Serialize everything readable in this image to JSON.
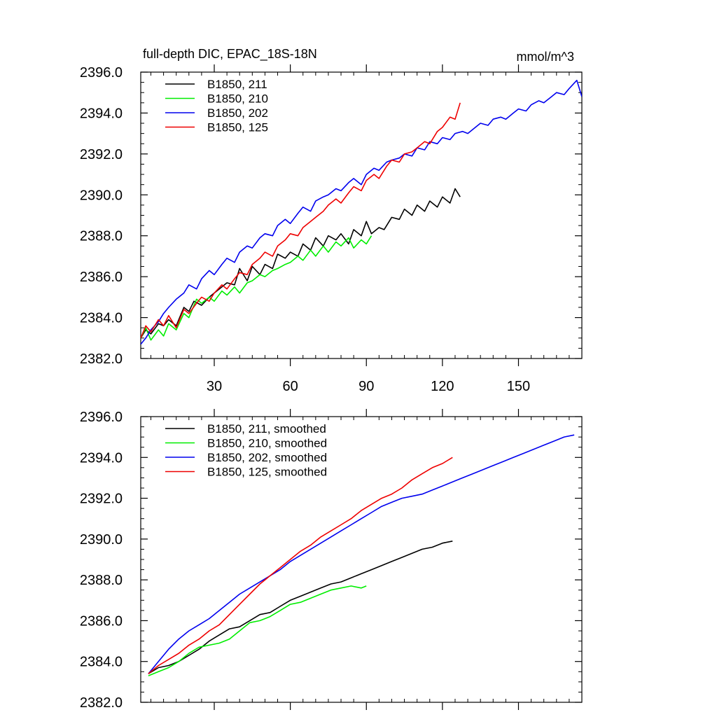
{
  "chart_data": [
    {
      "type": "line",
      "title": "full-depth DIC, EPAC_18S-18N",
      "units": "mmol/m^3",
      "xlim": [
        1,
        175
      ],
      "ylim": [
        2382.0,
        2396.0
      ],
      "xticks": [
        30,
        60,
        90,
        120,
        150
      ],
      "show_xtick_labels": true,
      "yticks": [
        2382.0,
        2384.0,
        2386.0,
        2388.0,
        2390.0,
        2392.0,
        2394.0,
        2396.0
      ],
      "ytick_labels": [
        "2382.0",
        "2384.0",
        "2386.0",
        "2388.0",
        "2390.0",
        "2392.0",
        "2394.0",
        "2396.0"
      ],
      "grid": false,
      "legend_position": "top-left",
      "series": [
        {
          "name": "B1850, 211",
          "color": "#000000",
          "x": [
            1,
            3,
            5,
            8,
            10,
            12,
            15,
            18,
            20,
            22,
            25,
            28,
            30,
            33,
            35,
            38,
            40,
            43,
            45,
            48,
            50,
            53,
            55,
            58,
            60,
            63,
            65,
            68,
            70,
            73,
            75,
            78,
            80,
            83,
            85,
            88,
            90,
            92,
            95,
            97,
            100,
            103,
            105,
            108,
            110,
            113,
            115,
            118,
            120,
            123,
            125,
            127
          ],
          "y": [
            2383.0,
            2383.4,
            2383.2,
            2383.7,
            2383.6,
            2383.9,
            2383.6,
            2384.5,
            2384.3,
            2384.8,
            2384.6,
            2385.0,
            2385.2,
            2385.5,
            2385.7,
            2385.6,
            2386.4,
            2385.8,
            2386.5,
            2386.1,
            2386.6,
            2386.4,
            2387.1,
            2386.9,
            2387.2,
            2387.0,
            2387.6,
            2387.3,
            2387.9,
            2387.5,
            2388.0,
            2387.8,
            2388.1,
            2387.6,
            2388.3,
            2388.0,
            2388.7,
            2388.1,
            2388.4,
            2388.3,
            2388.9,
            2388.8,
            2389.3,
            2389.0,
            2389.5,
            2389.2,
            2389.7,
            2389.4,
            2389.9,
            2389.6,
            2390.3,
            2389.9
          ]
        },
        {
          "name": "B1850, 210",
          "color": "#00ee00",
          "x": [
            1,
            3,
            5,
            8,
            10,
            12,
            15,
            18,
            20,
            23,
            25,
            28,
            30,
            33,
            35,
            38,
            40,
            43,
            45,
            48,
            50,
            53,
            55,
            58,
            60,
            63,
            65,
            68,
            70,
            73,
            75,
            78,
            80,
            83,
            85,
            88,
            90,
            92
          ],
          "y": [
            2383.0,
            2383.5,
            2382.9,
            2383.4,
            2383.1,
            2383.7,
            2383.4,
            2384.2,
            2384.0,
            2384.9,
            2384.7,
            2385.0,
            2384.8,
            2385.3,
            2385.1,
            2385.5,
            2385.2,
            2385.7,
            2385.8,
            2386.1,
            2386.0,
            2386.3,
            2386.4,
            2386.6,
            2386.7,
            2387.0,
            2386.8,
            2387.3,
            2387.0,
            2387.5,
            2387.2,
            2387.7,
            2387.5,
            2387.9,
            2387.4,
            2387.8,
            2387.6,
            2388.0
          ]
        },
        {
          "name": "B1850, 202",
          "color": "#0000ee",
          "x": [
            1,
            3,
            5,
            8,
            10,
            12,
            15,
            18,
            20,
            23,
            25,
            28,
            30,
            33,
            35,
            38,
            40,
            43,
            45,
            48,
            50,
            53,
            55,
            58,
            60,
            63,
            65,
            68,
            70,
            73,
            75,
            78,
            80,
            83,
            85,
            88,
            90,
            93,
            95,
            98,
            100,
            103,
            105,
            108,
            110,
            113,
            115,
            118,
            120,
            123,
            125,
            128,
            130,
            133,
            135,
            138,
            140,
            143,
            145,
            148,
            150,
            153,
            155,
            158,
            160,
            163,
            165,
            168,
            170,
            173,
            175
          ],
          "y": [
            2382.7,
            2383.0,
            2383.4,
            2383.8,
            2384.2,
            2384.5,
            2384.9,
            2385.2,
            2385.6,
            2385.4,
            2385.9,
            2386.3,
            2386.1,
            2386.6,
            2386.9,
            2386.7,
            2387.2,
            2387.5,
            2387.4,
            2387.9,
            2388.1,
            2388.0,
            2388.5,
            2388.8,
            2388.6,
            2389.1,
            2389.4,
            2389.2,
            2389.7,
            2389.9,
            2390.0,
            2390.3,
            2390.2,
            2390.6,
            2390.8,
            2390.5,
            2391.0,
            2391.3,
            2391.2,
            2391.6,
            2391.7,
            2391.8,
            2392.0,
            2391.9,
            2392.3,
            2392.2,
            2392.6,
            2392.5,
            2392.8,
            2392.7,
            2393.0,
            2393.1,
            2393.0,
            2393.3,
            2393.5,
            2393.4,
            2393.7,
            2393.8,
            2393.7,
            2394.0,
            2394.2,
            2394.1,
            2394.4,
            2394.6,
            2394.5,
            2394.8,
            2395.0,
            2394.9,
            2395.2,
            2395.6,
            2394.8
          ]
        },
        {
          "name": "B1850, 125",
          "color": "#ee0000",
          "x": [
            1,
            3,
            5,
            8,
            10,
            12,
            15,
            18,
            20,
            23,
            25,
            28,
            30,
            33,
            35,
            38,
            40,
            43,
            45,
            48,
            50,
            53,
            55,
            58,
            60,
            63,
            65,
            68,
            70,
            73,
            75,
            78,
            80,
            83,
            85,
            88,
            90,
            93,
            95,
            98,
            100,
            103,
            105,
            108,
            110,
            113,
            115,
            118,
            120,
            123,
            125,
            127
          ],
          "y": [
            2383.0,
            2383.6,
            2383.3,
            2383.9,
            2383.6,
            2384.1,
            2383.5,
            2384.4,
            2384.2,
            2384.7,
            2385.0,
            2384.8,
            2385.2,
            2385.6,
            2385.4,
            2385.9,
            2386.2,
            2386.1,
            2386.6,
            2386.9,
            2387.2,
            2387.0,
            2387.5,
            2387.8,
            2388.1,
            2388.0,
            2388.4,
            2388.7,
            2388.9,
            2389.2,
            2389.5,
            2389.8,
            2389.6,
            2390.1,
            2390.4,
            2390.2,
            2390.7,
            2391.0,
            2390.8,
            2391.4,
            2391.7,
            2391.6,
            2392.0,
            2392.1,
            2392.3,
            2392.6,
            2392.5,
            2393.1,
            2393.3,
            2393.8,
            2393.7,
            2394.5
          ]
        }
      ]
    },
    {
      "type": "line",
      "xlim": [
        1,
        175
      ],
      "ylim": [
        2382.0,
        2396.0
      ],
      "xticks": [
        30,
        60,
        90,
        120,
        150
      ],
      "show_xtick_labels": false,
      "yticks": [
        2382.0,
        2384.0,
        2386.0,
        2388.0,
        2390.0,
        2392.0,
        2394.0,
        2396.0
      ],
      "ytick_labels": [
        "2382.0",
        "2384.0",
        "2386.0",
        "2388.0",
        "2390.0",
        "2392.0",
        "2394.0",
        "2396.0"
      ],
      "grid": false,
      "legend_position": "top-left",
      "series": [
        {
          "name": "B1850, 211, smoothed",
          "color": "#000000",
          "x": [
            4,
            8,
            12,
            16,
            20,
            24,
            28,
            32,
            36,
            40,
            44,
            48,
            52,
            56,
            60,
            64,
            68,
            72,
            76,
            80,
            84,
            88,
            92,
            96,
            100,
            104,
            108,
            112,
            116,
            120,
            124
          ],
          "y": [
            2383.4,
            2383.7,
            2383.8,
            2384.0,
            2384.3,
            2384.6,
            2385.0,
            2385.3,
            2385.6,
            2385.7,
            2386.0,
            2386.3,
            2386.4,
            2386.7,
            2387.0,
            2387.2,
            2387.4,
            2387.6,
            2387.8,
            2387.9,
            2388.1,
            2388.3,
            2388.5,
            2388.7,
            2388.9,
            2389.1,
            2389.3,
            2389.5,
            2389.6,
            2389.8,
            2389.9
          ]
        },
        {
          "name": "B1850, 210, smoothed",
          "color": "#00ee00",
          "x": [
            4,
            8,
            12,
            16,
            20,
            24,
            28,
            32,
            36,
            40,
            44,
            48,
            52,
            56,
            60,
            64,
            68,
            72,
            76,
            80,
            84,
            88,
            90
          ],
          "y": [
            2383.3,
            2383.5,
            2383.7,
            2384.0,
            2384.4,
            2384.7,
            2384.8,
            2384.9,
            2385.1,
            2385.5,
            2385.9,
            2386.0,
            2386.2,
            2386.5,
            2386.8,
            2386.9,
            2387.1,
            2387.3,
            2387.5,
            2387.6,
            2387.7,
            2387.6,
            2387.7
          ]
        },
        {
          "name": "B1850, 202, smoothed",
          "color": "#0000ee",
          "x": [
            4,
            8,
            12,
            16,
            20,
            24,
            28,
            32,
            36,
            40,
            44,
            48,
            52,
            56,
            60,
            64,
            68,
            72,
            76,
            80,
            84,
            88,
            92,
            96,
            100,
            104,
            108,
            112,
            116,
            120,
            124,
            128,
            132,
            136,
            140,
            144,
            148,
            152,
            156,
            160,
            164,
            168,
            172
          ],
          "y": [
            2383.4,
            2384.0,
            2384.6,
            2385.1,
            2385.5,
            2385.8,
            2386.1,
            2386.5,
            2386.9,
            2387.3,
            2387.6,
            2387.9,
            2388.2,
            2388.5,
            2388.9,
            2389.2,
            2389.5,
            2389.8,
            2390.1,
            2390.4,
            2390.7,
            2391.0,
            2391.3,
            2391.6,
            2391.8,
            2392.0,
            2392.1,
            2392.2,
            2392.4,
            2392.6,
            2392.8,
            2393.0,
            2393.2,
            2393.4,
            2393.6,
            2393.8,
            2394.0,
            2394.2,
            2394.4,
            2394.6,
            2394.8,
            2395.0,
            2395.1
          ]
        },
        {
          "name": "B1850, 125, smoothed",
          "color": "#ee0000",
          "x": [
            4,
            8,
            12,
            16,
            20,
            24,
            28,
            32,
            36,
            40,
            44,
            48,
            52,
            56,
            60,
            64,
            68,
            72,
            76,
            80,
            84,
            88,
            92,
            96,
            100,
            104,
            108,
            112,
            116,
            120,
            124
          ],
          "y": [
            2383.4,
            2383.8,
            2384.1,
            2384.4,
            2384.8,
            2385.1,
            2385.5,
            2385.8,
            2386.3,
            2386.8,
            2387.3,
            2387.8,
            2388.2,
            2388.6,
            2389.0,
            2389.4,
            2389.7,
            2390.1,
            2390.4,
            2390.7,
            2391.0,
            2391.4,
            2391.7,
            2392.0,
            2392.2,
            2392.5,
            2392.9,
            2393.2,
            2393.5,
            2393.7,
            2394.0
          ]
        }
      ]
    }
  ]
}
